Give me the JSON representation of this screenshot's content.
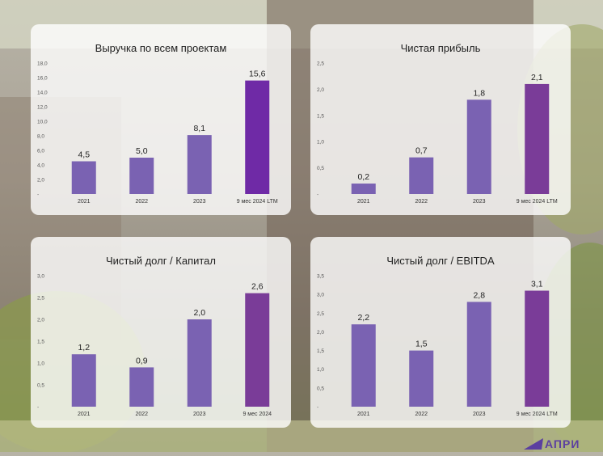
{
  "logo_text": "АПРИ",
  "colors": {
    "bar_standard": "#7a62b2",
    "bar_highlight": "#6f2aa6",
    "bar_highlight_alt": "#7a3c98"
  },
  "chart_data": [
    {
      "type": "bar",
      "title": "Выручка по всем проектам",
      "categories": [
        "2021",
        "2022",
        "2023",
        "9 мес 2024 LTM"
      ],
      "values": [
        4.5,
        5.0,
        8.1,
        15.6
      ],
      "value_labels": [
        "4,5",
        "5,0",
        "8,1",
        "15,6"
      ],
      "ylim": [
        0,
        18
      ],
      "yticks": [
        "-",
        "2,0",
        "4,0",
        "6,0",
        "8,0",
        "10,0",
        "12,0",
        "14,0",
        "16,0",
        "18,0"
      ],
      "highlight_last": true
    },
    {
      "type": "bar",
      "title": "Чистая прибыль",
      "categories": [
        "2021",
        "2022",
        "2023",
        "9 мес 2024 LTM"
      ],
      "values": [
        0.2,
        0.7,
        1.8,
        2.1
      ],
      "value_labels": [
        "0,2",
        "0,7",
        "1,8",
        "2,1"
      ],
      "ylim": [
        0,
        2.5
      ],
      "yticks": [
        "-",
        "0,5",
        "1,0",
        "1,5",
        "2,0",
        "2,5"
      ],
      "highlight_last": true
    },
    {
      "type": "bar",
      "title": "Чистый долг / Капитал",
      "categories": [
        "2021",
        "2022",
        "2023",
        "9 мес 2024"
      ],
      "values": [
        1.2,
        0.9,
        2.0,
        2.6
      ],
      "value_labels": [
        "1,2",
        "0,9",
        "2,0",
        "2,6"
      ],
      "ylim": [
        0,
        3.0
      ],
      "yticks": [
        "-",
        "0,5",
        "1,0",
        "1,5",
        "2,0",
        "2,5",
        "3,0"
      ],
      "highlight_last": true
    },
    {
      "type": "bar",
      "title": "Чистый долг / EBITDA",
      "categories": [
        "2021",
        "2022",
        "2023",
        "9 мес 2024 LTM"
      ],
      "values": [
        2.2,
        1.5,
        2.8,
        3.1
      ],
      "value_labels": [
        "2,2",
        "1,5",
        "2,8",
        "3,1"
      ],
      "ylim": [
        0,
        3.5
      ],
      "yticks": [
        "-",
        "0,5",
        "1,0",
        "1,5",
        "2,0",
        "2,5",
        "3,0",
        "3,5"
      ],
      "highlight_last": true
    }
  ]
}
